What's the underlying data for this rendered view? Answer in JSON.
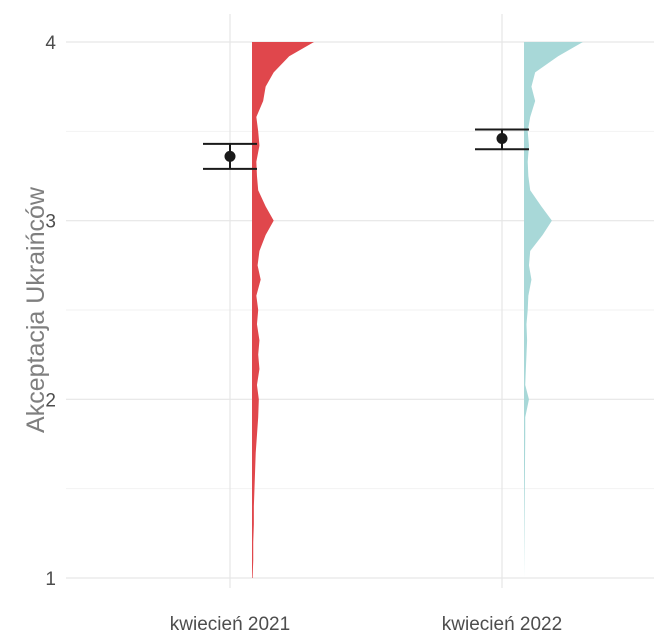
{
  "chart_data": {
    "type": "half-violin with mean and error bars",
    "title": "",
    "xlabel": "",
    "ylabel": "Akceptacja Ukraińców",
    "ylim": [
      1,
      4
    ],
    "yticks": [
      1,
      2,
      3,
      4
    ],
    "grid": true,
    "legend": "none",
    "categories": [
      "kwiecień 2021",
      "kwiecień 2022"
    ],
    "series": [
      {
        "category": "kwiecień 2021",
        "color": "#e0474c",
        "mean": 3.36,
        "ci_low": 3.29,
        "ci_high": 3.43,
        "density": [
          [
            1.0,
            0.01
          ],
          [
            1.1,
            0.02
          ],
          [
            1.2,
            0.02
          ],
          [
            1.3,
            0.03
          ],
          [
            1.4,
            0.03
          ],
          [
            1.5,
            0.04
          ],
          [
            1.6,
            0.05
          ],
          [
            1.7,
            0.06
          ],
          [
            1.8,
            0.08
          ],
          [
            1.9,
            0.1
          ],
          [
            2.0,
            0.11
          ],
          [
            2.08,
            0.08
          ],
          [
            2.17,
            0.12
          ],
          [
            2.25,
            0.1
          ],
          [
            2.33,
            0.12
          ],
          [
            2.42,
            0.08
          ],
          [
            2.5,
            0.1
          ],
          [
            2.58,
            0.07
          ],
          [
            2.67,
            0.14
          ],
          [
            2.75,
            0.09
          ],
          [
            2.83,
            0.12
          ],
          [
            2.92,
            0.22
          ],
          [
            3.0,
            0.35
          ],
          [
            3.08,
            0.22
          ],
          [
            3.17,
            0.1
          ],
          [
            3.25,
            0.08
          ],
          [
            3.33,
            0.07
          ],
          [
            3.42,
            0.12
          ],
          [
            3.5,
            0.1
          ],
          [
            3.58,
            0.07
          ],
          [
            3.67,
            0.18
          ],
          [
            3.75,
            0.22
          ],
          [
            3.83,
            0.35
          ],
          [
            3.92,
            0.6
          ],
          [
            4.0,
            1.0
          ]
        ]
      },
      {
        "category": "kwiecień 2022",
        "color": "#a8d8d8",
        "mean": 3.46,
        "ci_low": 3.4,
        "ci_high": 3.51,
        "density": [
          [
            1.0,
            0.0
          ],
          [
            1.2,
            0.005
          ],
          [
            1.4,
            0.01
          ],
          [
            1.6,
            0.015
          ],
          [
            1.8,
            0.02
          ],
          [
            1.9,
            0.02
          ],
          [
            2.0,
            0.08
          ],
          [
            2.08,
            0.02
          ],
          [
            2.17,
            0.03
          ],
          [
            2.25,
            0.04
          ],
          [
            2.33,
            0.05
          ],
          [
            2.42,
            0.04
          ],
          [
            2.5,
            0.06
          ],
          [
            2.58,
            0.07
          ],
          [
            2.67,
            0.12
          ],
          [
            2.75,
            0.08
          ],
          [
            2.83,
            0.1
          ],
          [
            2.92,
            0.3
          ],
          [
            3.0,
            0.45
          ],
          [
            3.08,
            0.28
          ],
          [
            3.17,
            0.1
          ],
          [
            3.25,
            0.07
          ],
          [
            3.33,
            0.06
          ],
          [
            3.42,
            0.08
          ],
          [
            3.5,
            0.06
          ],
          [
            3.58,
            0.1
          ],
          [
            3.67,
            0.18
          ],
          [
            3.75,
            0.12
          ],
          [
            3.83,
            0.18
          ],
          [
            3.92,
            0.55
          ],
          [
            4.0,
            0.95
          ]
        ]
      }
    ]
  }
}
